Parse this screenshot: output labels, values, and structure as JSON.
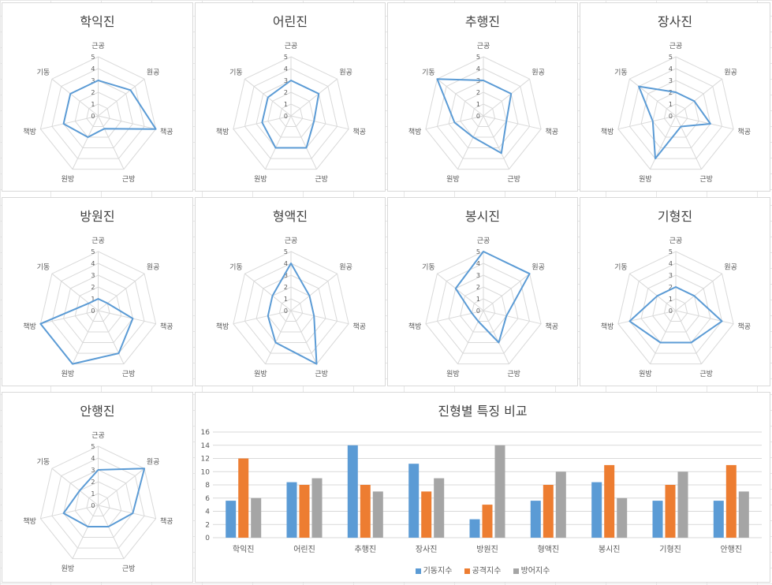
{
  "chart_data": [
    {
      "type": "radar",
      "title": "학익진",
      "axes": [
        "근공",
        "원공",
        "책공",
        "근방",
        "원방",
        "책방",
        "기동"
      ],
      "ticks": [
        "0",
        "1",
        "2",
        "3",
        "4",
        "5"
      ],
      "rmax": 5,
      "values": [
        3,
        3.5,
        5,
        1.2,
        2,
        3,
        3
      ]
    },
    {
      "type": "radar",
      "title": "어린진",
      "axes": [
        "근공",
        "원공",
        "책공",
        "근방",
        "원방",
        "책방",
        "기동"
      ],
      "ticks": [
        "0",
        "1",
        "2",
        "3",
        "4",
        "5"
      ],
      "rmax": 5,
      "values": [
        3,
        3,
        2,
        3,
        3,
        2.5,
        2.5
      ]
    },
    {
      "type": "radar",
      "title": "추행진",
      "axes": [
        "근공",
        "원공",
        "책공",
        "근방",
        "원방",
        "책방",
        "기동"
      ],
      "ticks": [
        "0",
        "1",
        "2",
        "3",
        "4",
        "5"
      ],
      "rmax": 5,
      "values": [
        3,
        3,
        2,
        3.5,
        2,
        2.5,
        5
      ]
    },
    {
      "type": "radar",
      "title": "장사진",
      "axes": [
        "근공",
        "원공",
        "책공",
        "근방",
        "원방",
        "책방",
        "기동"
      ],
      "ticks": [
        "0",
        "1",
        "2",
        "3",
        "4",
        "5"
      ],
      "rmax": 5,
      "values": [
        2,
        2,
        3,
        1,
        4,
        2,
        4
      ]
    },
    {
      "type": "radar",
      "title": "방원진",
      "axes": [
        "근공",
        "원공",
        "책공",
        "근방",
        "원방",
        "책방",
        "기동"
      ],
      "ticks": [
        "0",
        "1",
        "2",
        "3",
        "4",
        "5"
      ],
      "rmax": 5,
      "values": [
        1,
        1,
        3,
        4,
        5,
        5,
        1
      ]
    },
    {
      "type": "radar",
      "title": "형액진",
      "axes": [
        "근공",
        "원공",
        "책공",
        "근방",
        "원방",
        "책방",
        "기동"
      ],
      "ticks": [
        "0",
        "1",
        "2",
        "3",
        "4",
        "5"
      ],
      "rmax": 5,
      "values": [
        4,
        2,
        2,
        5,
        3,
        2,
        2
      ]
    },
    {
      "type": "radar",
      "title": "봉시진",
      "axes": [
        "근공",
        "원공",
        "책공",
        "근방",
        "원방",
        "책방",
        "기동"
      ],
      "ticks": [
        "0",
        "1",
        "2",
        "3",
        "4",
        "5"
      ],
      "rmax": 5,
      "values": [
        5,
        5,
        2,
        3,
        1,
        1,
        3
      ]
    },
    {
      "type": "radar",
      "title": "기형진",
      "axes": [
        "근공",
        "원공",
        "책공",
        "근방",
        "원방",
        "책방",
        "기동"
      ],
      "ticks": [
        "0",
        "1",
        "2",
        "3",
        "4",
        "5"
      ],
      "rmax": 5,
      "values": [
        2,
        2,
        4,
        3,
        3,
        4,
        2
      ]
    },
    {
      "type": "radar",
      "title": "안행진",
      "axes": [
        "근공",
        "원공",
        "책공",
        "근방",
        "원방",
        "책방",
        "기동"
      ],
      "ticks": [
        "0",
        "1",
        "2",
        "3",
        "4",
        "5"
      ],
      "rmax": 5,
      "values": [
        3,
        5,
        3,
        2,
        2,
        3,
        2
      ]
    },
    {
      "type": "bar",
      "title": "진형별 특징 비교",
      "categories": [
        "학익진",
        "어린진",
        "추행진",
        "장사진",
        "방원진",
        "형액진",
        "봉시진",
        "기형진",
        "안행진"
      ],
      "ylim": [
        0,
        16
      ],
      "yticks": [
        "0",
        "2",
        "4",
        "6",
        "8",
        "10",
        "12",
        "14",
        "16"
      ],
      "legend_position": "bottom",
      "series": [
        {
          "name": "기동지수",
          "color": "#5b9bd5",
          "values": [
            5.6,
            8.4,
            14,
            11.2,
            2.8,
            5.6,
            8.4,
            5.6,
            5.6
          ]
        },
        {
          "name": "공격지수",
          "color": "#ed7d31",
          "values": [
            12,
            8,
            8,
            7,
            5,
            8,
            11,
            8,
            11
          ]
        },
        {
          "name": "방어지수",
          "color": "#a5a5a5",
          "values": [
            6,
            9,
            7,
            9,
            14,
            10,
            6,
            10,
            7
          ]
        }
      ]
    }
  ]
}
